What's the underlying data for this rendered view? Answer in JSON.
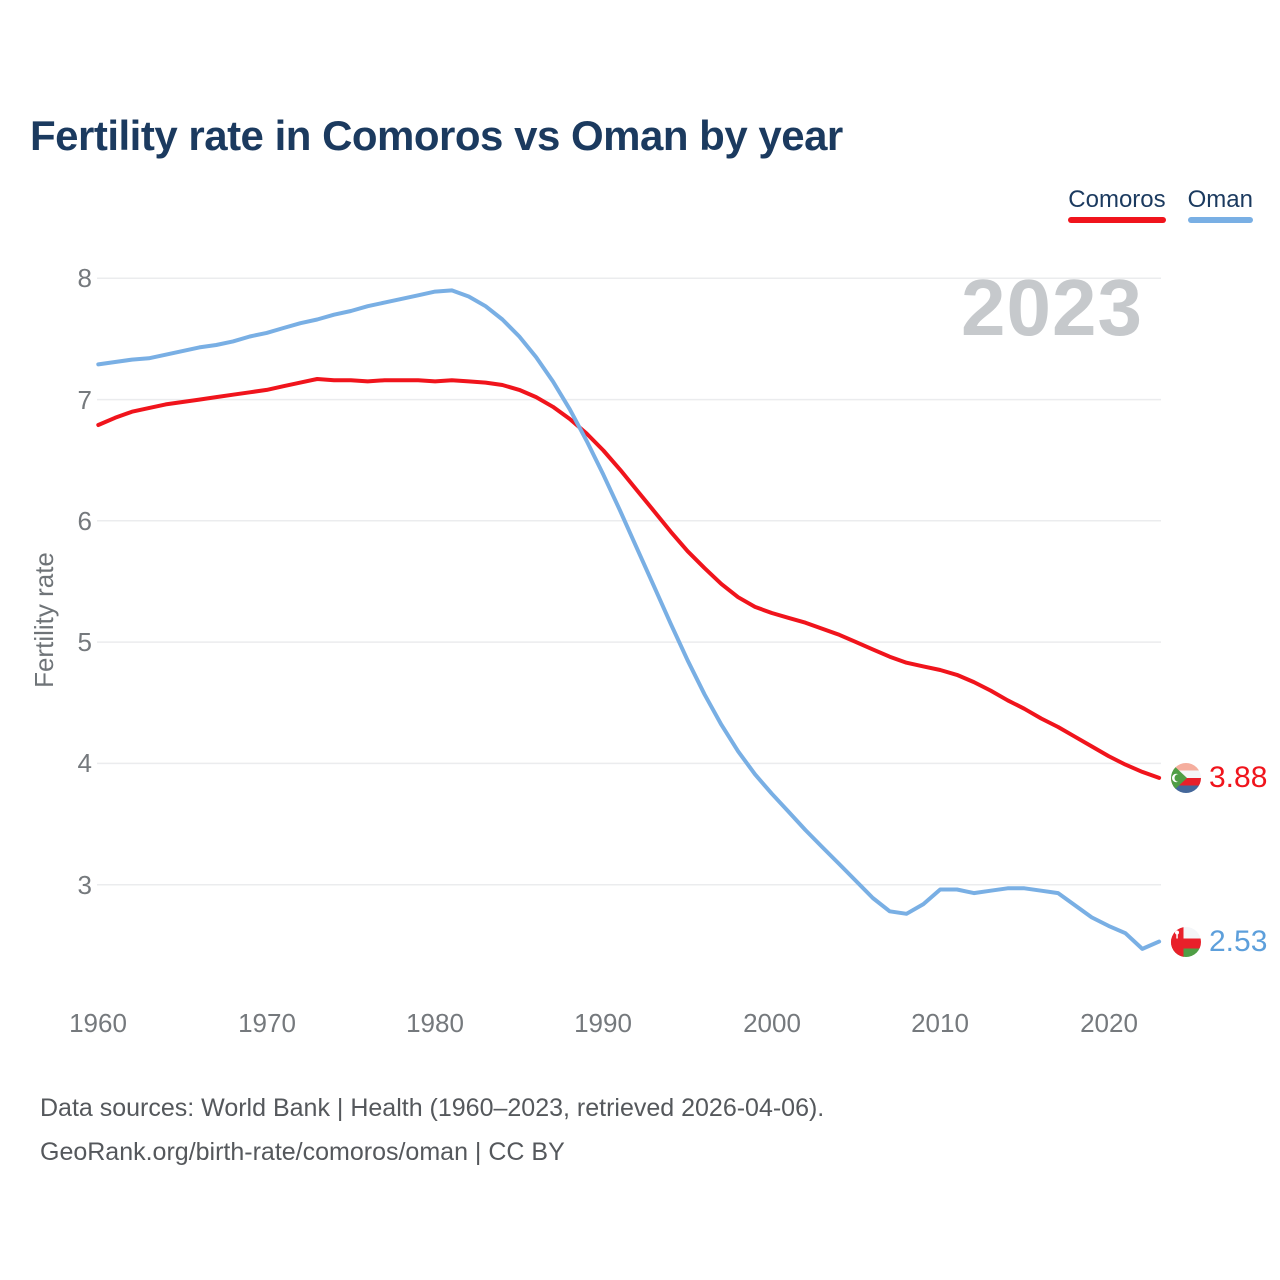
{
  "title": "Fertility rate in Comoros vs Oman by year",
  "watermark": "2023",
  "legend": {
    "items": [
      {
        "label": "Comoros",
        "color": "#f0141c"
      },
      {
        "label": "Oman",
        "color": "#79afe4"
      }
    ]
  },
  "y_axis": {
    "label": "Fertility rate",
    "ticks": [
      "8",
      "7",
      "6",
      "5",
      "4",
      "3"
    ]
  },
  "x_axis": {
    "ticks": [
      "1960",
      "1970",
      "1980",
      "1990",
      "2000",
      "2010",
      "2020"
    ]
  },
  "end_labels": {
    "comoros": {
      "value": "3.88",
      "color": "#f0141c",
      "flag_icon": "comoros-flag-icon"
    },
    "oman": {
      "value": "2.53",
      "color": "#5d9fdb",
      "flag_icon": "oman-flag-icon"
    }
  },
  "footer": {
    "line1": "Data sources: World Bank | Health (1960–2023, retrieved 2026-04-06).",
    "line2": "GeoRank.org/birth-rate/comoros/oman | CC BY"
  },
  "chart_data": {
    "type": "line",
    "title": "Fertility rate in Comoros vs Oman by year",
    "xlabel": "",
    "ylabel": "Fertility rate",
    "xlim": [
      1960,
      2023
    ],
    "ylim": [
      2.4,
      8.1
    ],
    "grid": "horizontal",
    "legend_position": "top-right",
    "watermark": "2023",
    "year_start": 1960,
    "year_step": 1,
    "y_ticks": [
      8,
      7,
      6,
      5,
      4,
      3
    ],
    "x_ticks": [
      1960,
      1970,
      1980,
      1990,
      2000,
      2010,
      2020
    ],
    "series": [
      {
        "name": "Comoros",
        "color": "#f0141c",
        "end_label": "3.88",
        "values": [
          6.79,
          6.85,
          6.9,
          6.93,
          6.96,
          6.98,
          7.0,
          7.02,
          7.04,
          7.06,
          7.08,
          7.11,
          7.14,
          7.17,
          7.16,
          7.16,
          7.15,
          7.16,
          7.16,
          7.16,
          7.15,
          7.16,
          7.15,
          7.14,
          7.12,
          7.08,
          7.02,
          6.94,
          6.84,
          6.72,
          6.58,
          6.42,
          6.25,
          6.08,
          5.91,
          5.75,
          5.61,
          5.48,
          5.37,
          5.29,
          5.24,
          5.2,
          5.16,
          5.11,
          5.06,
          5.0,
          4.94,
          4.88,
          4.83,
          4.8,
          4.77,
          4.73,
          4.67,
          4.6,
          4.52,
          4.45,
          4.37,
          4.3,
          4.22,
          4.14,
          4.06,
          3.99,
          3.93,
          3.88
        ]
      },
      {
        "name": "Oman",
        "color": "#79afe4",
        "end_label": "2.53",
        "values": [
          7.29,
          7.31,
          7.33,
          7.34,
          7.37,
          7.4,
          7.43,
          7.45,
          7.48,
          7.52,
          7.55,
          7.59,
          7.63,
          7.66,
          7.7,
          7.73,
          7.77,
          7.8,
          7.83,
          7.86,
          7.89,
          7.9,
          7.85,
          7.77,
          7.66,
          7.52,
          7.35,
          7.15,
          6.92,
          6.66,
          6.38,
          6.08,
          5.77,
          5.46,
          5.15,
          4.85,
          4.57,
          4.32,
          4.1,
          3.91,
          3.75,
          3.6,
          3.45,
          3.31,
          3.17,
          3.03,
          2.89,
          2.78,
          2.76,
          2.84,
          2.96,
          2.96,
          2.93,
          2.95,
          2.97,
          2.97,
          2.95,
          2.93,
          2.83,
          2.73,
          2.66,
          2.6,
          2.47,
          2.53
        ]
      }
    ]
  }
}
